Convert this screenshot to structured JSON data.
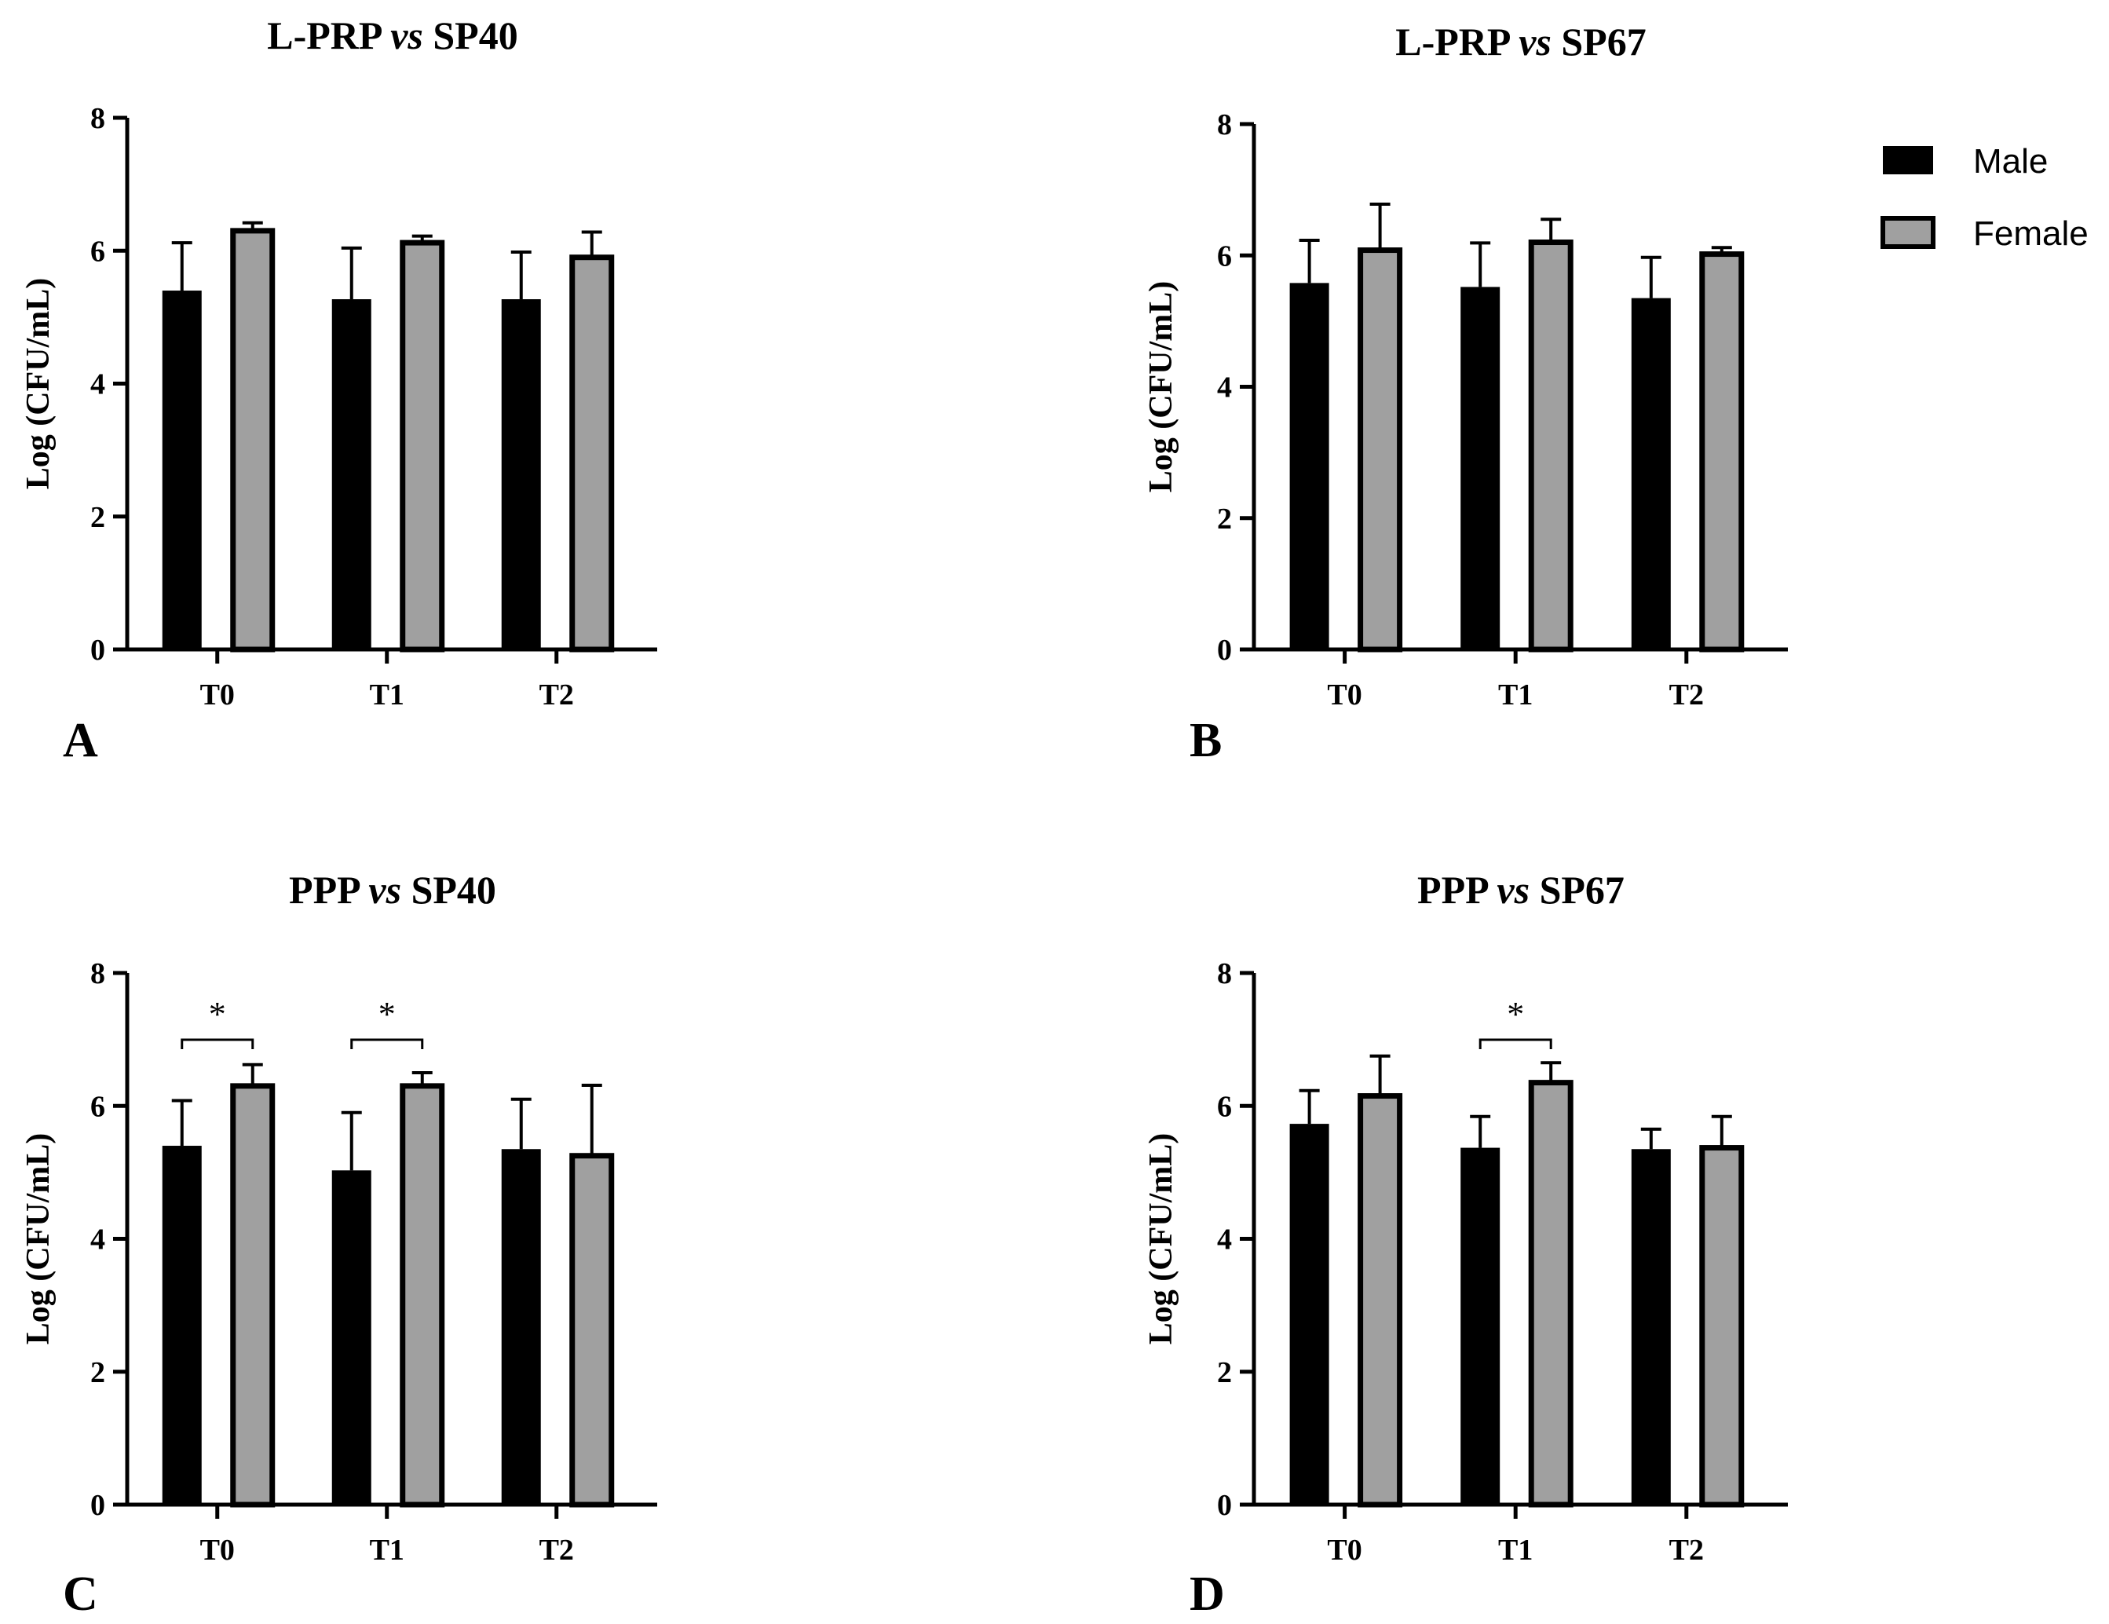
{
  "legend": {
    "items": [
      {
        "label": "Male",
        "color": "#000000"
      },
      {
        "label": "Female",
        "color": "#a0a0a0"
      }
    ]
  },
  "chart_data": [
    {
      "panel": "A",
      "type": "bar",
      "title": {
        "pre": "L-PRP ",
        "italic": "vs",
        "post": " SP40"
      },
      "ylabel": "Log (CFU/mL)",
      "ylim": [
        0,
        8
      ],
      "yticks": [
        0,
        2,
        4,
        6,
        8
      ],
      "categories": [
        "T0",
        "T1",
        "T2"
      ],
      "series": [
        {
          "name": "Male",
          "values": [
            5.4,
            5.27,
            5.27
          ],
          "errors": [
            0.72,
            0.77,
            0.71
          ]
        },
        {
          "name": "Female",
          "values": [
            6.3,
            6.12,
            5.9
          ],
          "errors": [
            0.12,
            0.1,
            0.38
          ]
        }
      ],
      "significance": []
    },
    {
      "panel": "B",
      "type": "bar",
      "title": {
        "pre": "L-PRP ",
        "italic": "vs",
        "post": " SP67"
      },
      "ylabel": "Log (CFU/mL)",
      "ylim": [
        0,
        8
      ],
      "yticks": [
        0,
        2,
        4,
        6,
        8
      ],
      "categories": [
        "T0",
        "T1",
        "T2"
      ],
      "series": [
        {
          "name": "Male",
          "values": [
            5.58,
            5.52,
            5.35
          ],
          "errors": [
            0.65,
            0.67,
            0.62
          ]
        },
        {
          "name": "Female",
          "values": [
            6.08,
            6.2,
            6.02
          ],
          "errors": [
            0.7,
            0.35,
            0.1
          ]
        }
      ],
      "significance": []
    },
    {
      "panel": "C",
      "type": "bar",
      "title": {
        "pre": "PPP ",
        "italic": "vs",
        "post": " SP40"
      },
      "ylabel": "Log (CFU/mL)",
      "ylim": [
        0,
        8
      ],
      "yticks": [
        0,
        2,
        4,
        6,
        8
      ],
      "categories": [
        "T0",
        "T1",
        "T2"
      ],
      "series": [
        {
          "name": "Male",
          "values": [
            5.4,
            5.03,
            5.35
          ],
          "errors": [
            0.68,
            0.87,
            0.75
          ]
        },
        {
          "name": "Female",
          "values": [
            6.3,
            6.3,
            5.25
          ],
          "errors": [
            0.32,
            0.2,
            1.06
          ]
        }
      ],
      "significance": [
        {
          "category": "T0",
          "label": "*"
        },
        {
          "category": "T1",
          "label": "*"
        }
      ]
    },
    {
      "panel": "D",
      "type": "bar",
      "title": {
        "pre": "PPP ",
        "italic": "vs",
        "post": " SP67"
      },
      "ylabel": "Log (CFU/mL)",
      "ylim": [
        0,
        8
      ],
      "yticks": [
        0,
        2,
        4,
        6,
        8
      ],
      "categories": [
        "T0",
        "T1",
        "T2"
      ],
      "series": [
        {
          "name": "Male",
          "values": [
            5.73,
            5.37,
            5.35
          ],
          "errors": [
            0.5,
            0.47,
            0.3
          ]
        },
        {
          "name": "Female",
          "values": [
            6.15,
            6.35,
            5.37
          ],
          "errors": [
            0.6,
            0.3,
            0.47
          ]
        }
      ],
      "significance": [
        {
          "category": "T1",
          "label": "*"
        }
      ]
    }
  ]
}
